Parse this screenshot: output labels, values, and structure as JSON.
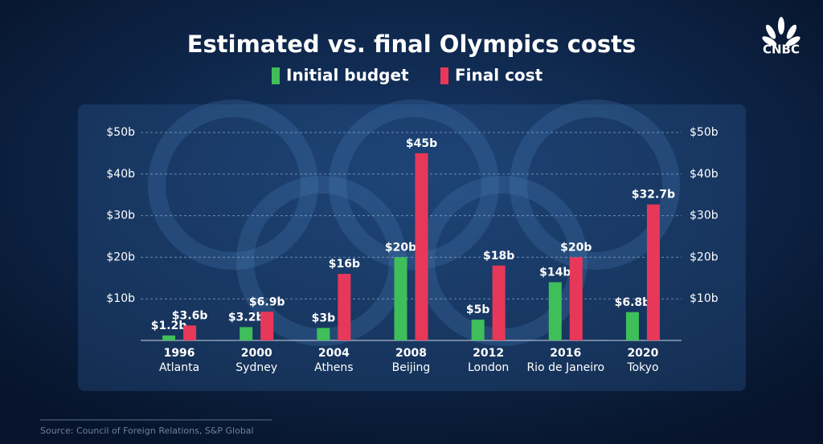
{
  "chart_data": {
    "type": "bar",
    "title": "Estimated vs. final Olympics costs",
    "categories": [
      "1996",
      "2000",
      "2004",
      "2008",
      "2012",
      "2016",
      "2020"
    ],
    "venues": [
      "Atlanta",
      "Sydney",
      "Athens",
      "Beijing",
      "London",
      "Rio de Janeiro",
      "Tokyo"
    ],
    "series": [
      {
        "name": "Initial budget",
        "color": "#3fbf5a",
        "values": [
          1.2,
          3.2,
          3,
          20,
          5,
          14,
          6.8
        ],
        "value_labels": [
          "$1.2b",
          "$3.2b",
          "$3b",
          "$20b",
          "$5b",
          "$14b",
          "$6.8b"
        ]
      },
      {
        "name": "Final cost",
        "color": "#e8385a",
        "values": [
          3.6,
          6.9,
          16,
          45,
          18,
          20,
          32.7
        ],
        "value_labels": [
          "$3.6b",
          "$6.9b",
          "$16b",
          "$45b",
          "$18b",
          "$20b",
          "$32.7b"
        ]
      }
    ],
    "ylim": [
      0,
      50
    ],
    "yticks": [
      {
        "value": 10,
        "label": "$10b"
      },
      {
        "value": 20,
        "label": "$20b"
      },
      {
        "value": 30,
        "label": "$30b"
      },
      {
        "value": 40,
        "label": "$40b"
      },
      {
        "value": 50,
        "label": "$50b"
      }
    ],
    "y2lim": [
      0,
      50
    ],
    "y2ticks": [
      {
        "value": 10,
        "label": "$10b"
      },
      {
        "value": 20,
        "label": "$20b"
      },
      {
        "value": 30,
        "label": "$30b"
      },
      {
        "value": 40,
        "label": "$40b"
      },
      {
        "value": 50,
        "label": "$50b"
      }
    ],
    "grid": true,
    "source": "Source: Council of Foreign Relations, S&P Global",
    "brand": "CNBC"
  }
}
